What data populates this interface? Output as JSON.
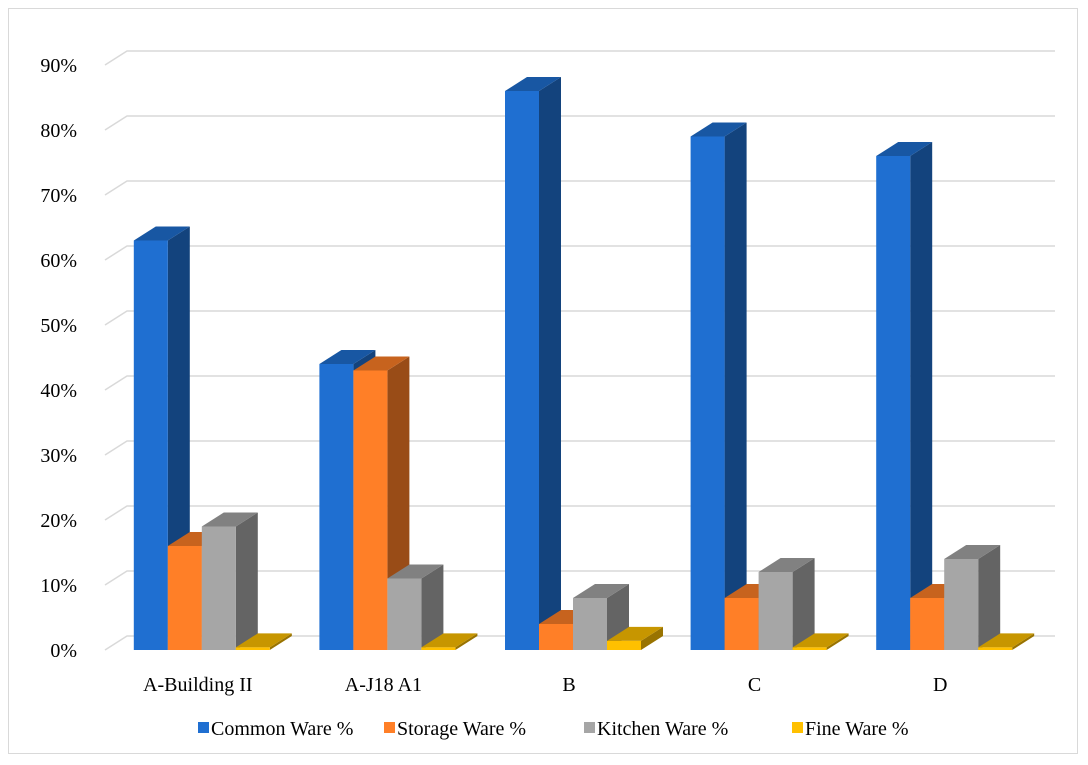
{
  "chart_data": {
    "type": "bar",
    "title": "",
    "xlabel": "",
    "ylabel": "",
    "categories": [
      "A-Building II",
      "A-J18 A1",
      "B",
      "C",
      "D"
    ],
    "y_ticks": [
      "0%",
      "10%",
      "20%",
      "30%",
      "40%",
      "50%",
      "60%",
      "70%",
      "80%",
      "90%"
    ],
    "ylim": [
      0,
      90
    ],
    "grid": true,
    "legend_position": "bottom",
    "style": "3d-column",
    "series": [
      {
        "name": "Common Ware %",
        "color": "#1f6fd1",
        "values": [
          63,
          44,
          86,
          79,
          76
        ]
      },
      {
        "name": "Storage Ware %",
        "color": "#ff7f27",
        "values": [
          16,
          43,
          4,
          8,
          8
        ]
      },
      {
        "name": "Kitchen Ware %",
        "color": "#a6a6a6",
        "values": [
          19,
          11,
          8,
          12,
          14
        ]
      },
      {
        "name": "Fine Ware %",
        "color": "#ffc000",
        "values": [
          0.4,
          0.4,
          1.4,
          0.4,
          0.4
        ]
      }
    ]
  }
}
